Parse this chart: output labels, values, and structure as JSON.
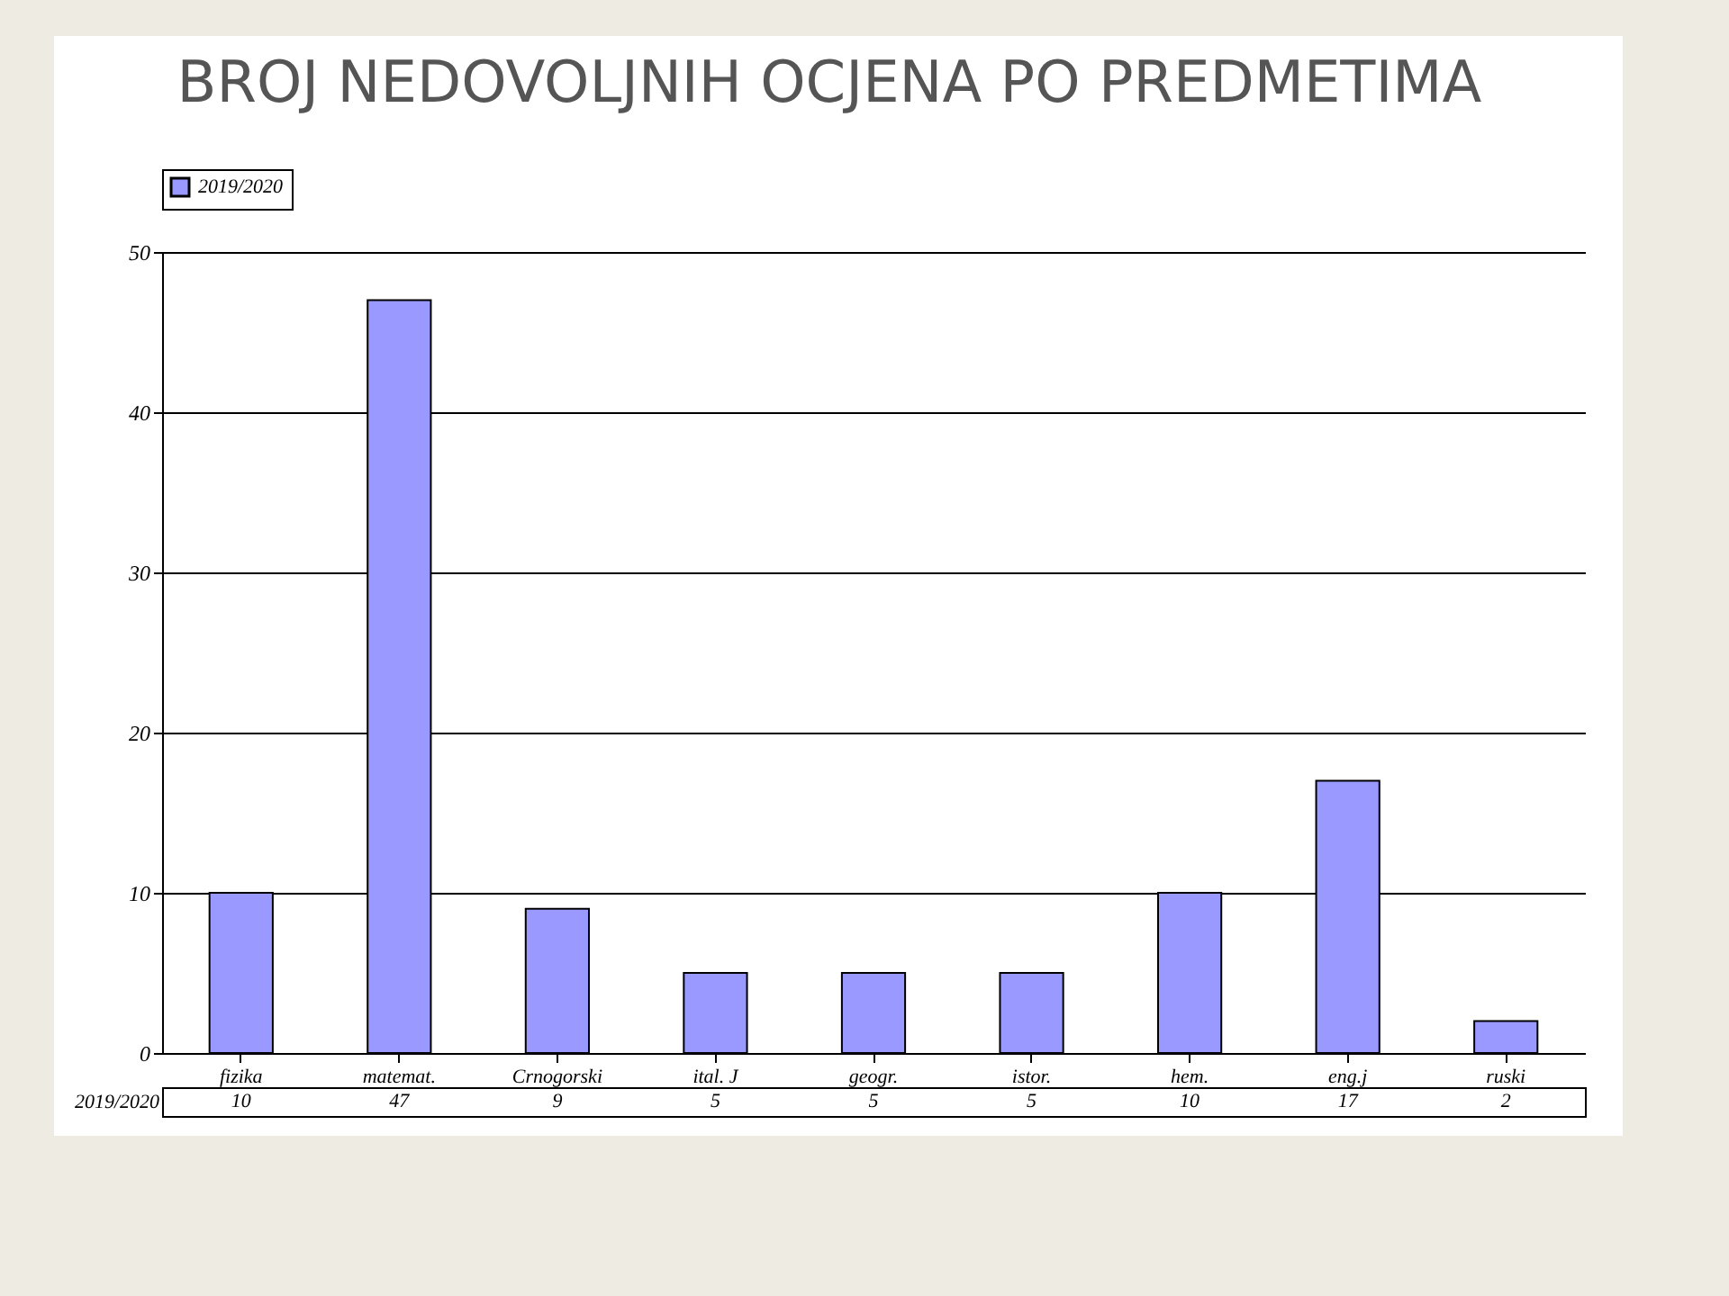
{
  "chart_data": {
    "type": "bar",
    "title": "BROJ NEDOVOLJNIH OCJENA PO PREDMETIMA",
    "categories": [
      "fizika",
      "matemat.",
      "Crnogorski",
      "ital. J",
      "geogr.",
      "istor.",
      "hem.",
      "eng.j",
      "ruski"
    ],
    "series": [
      {
        "name": "2019/2020",
        "color": "#9999ff",
        "values": [
          10,
          47,
          9,
          5,
          5,
          5,
          10,
          17,
          2
        ]
      }
    ],
    "ylim": [
      0,
      50
    ],
    "yticks": [
      0,
      10,
      20,
      30,
      40,
      50
    ],
    "grid": "y",
    "legend": "top",
    "data_labels": true
  }
}
